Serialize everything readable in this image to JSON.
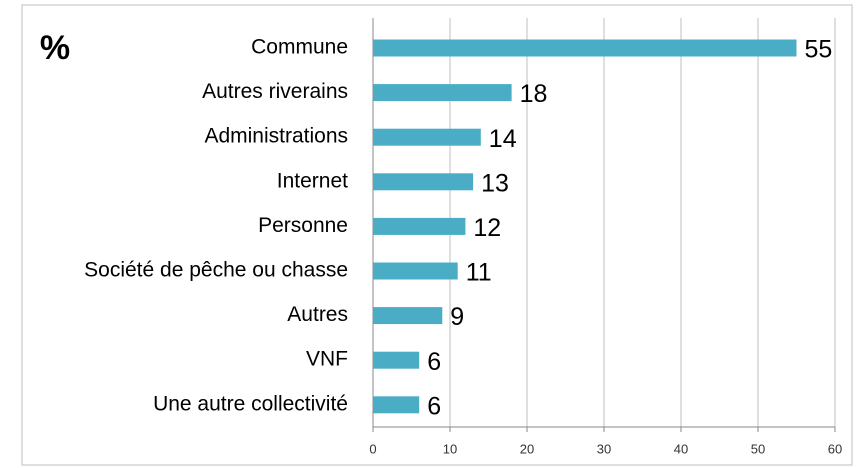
{
  "chart_data": {
    "type": "bar",
    "orientation": "horizontal",
    "title": "%",
    "categories": [
      "Commune",
      "Autres riverains",
      "Administrations",
      "Internet",
      "Personne",
      "Société de pêche ou chasse",
      "Autres",
      "VNF",
      "Une autre collectivité"
    ],
    "values": [
      55,
      18,
      14,
      13,
      12,
      11,
      9,
      6,
      6
    ],
    "color": "#4bacc6",
    "xlim": [
      0,
      60
    ],
    "xticks": [
      0,
      10,
      20,
      30,
      40,
      50,
      60
    ],
    "grid": true
  }
}
